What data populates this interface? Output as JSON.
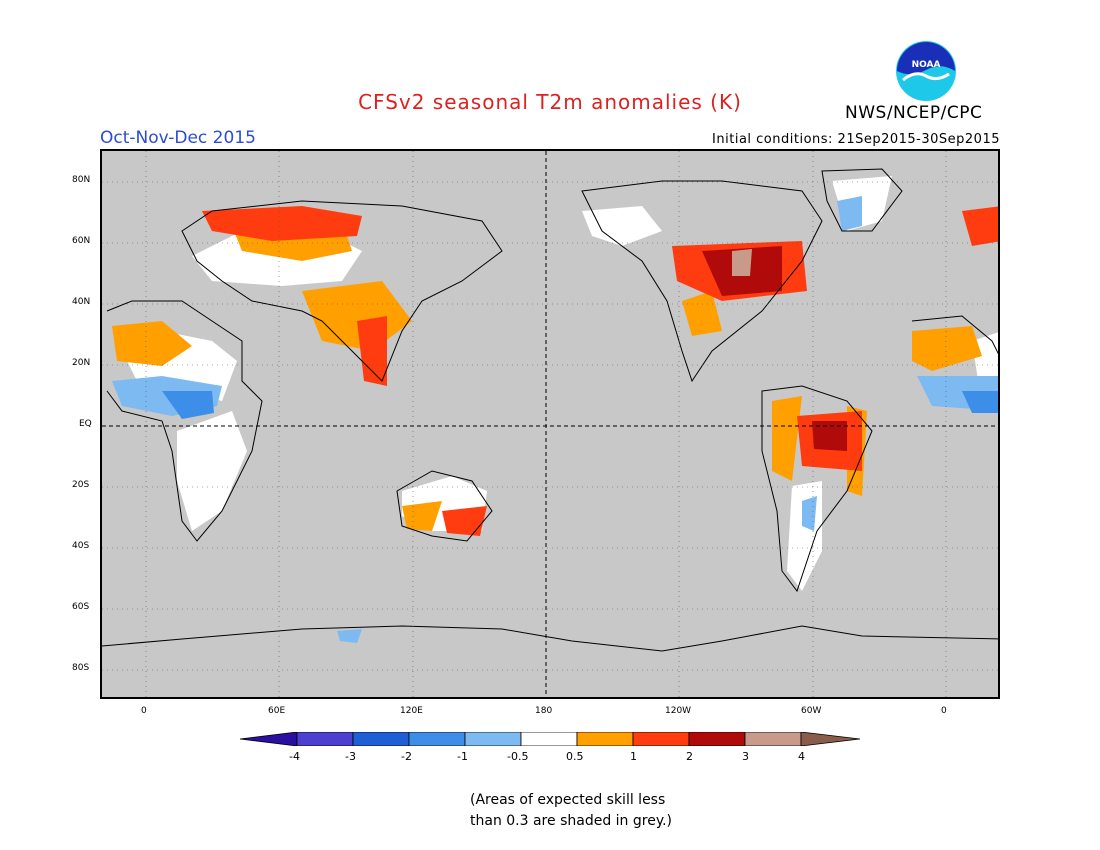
{
  "title": "CFSv2 seasonal T2m anomalies (K)",
  "season": "Oct-Nov-Dec 2015",
  "agency": "NWS/NCEP/CPC",
  "initial_conditions": "Initial conditions: 21Sep2015-30Sep2015",
  "logo_text": "NOAA",
  "y_axis_labels": [
    "80N",
    "60N",
    "40N",
    "20N",
    "EQ",
    "20S",
    "40S",
    "60S",
    "80S"
  ],
  "x_axis_labels": [
    "0",
    "60E",
    "120E",
    "180",
    "120W",
    "60W",
    "0"
  ],
  "colorbar": {
    "labels": [
      "-4",
      "-3",
      "-2",
      "-1",
      "-0.5",
      "0.5",
      "1",
      "2",
      "3",
      "4"
    ],
    "colors": [
      "#2a0fa0",
      "#4d3fd0",
      "#1f5fd6",
      "#3c8ee8",
      "#7dbaf2",
      "#ffffff",
      "#ff9f00",
      "#ff3c10",
      "#b00a0a",
      "#c89a8a",
      "#8a5c4a"
    ]
  },
  "note_line1": "(Areas of expected skill less",
  "note_line2": "than 0.3 are shaded in grey.)",
  "colors": {
    "land_grey": "#c8c8c8",
    "neutral": "#ffffff",
    "warm_0_5": "#ff9f00",
    "warm_1": "#ff3c10",
    "warm_2": "#b00a0a",
    "warm_3": "#c89a8a",
    "cool_0_5": "#7dbaf2",
    "cool_1": "#3c8ee8"
  }
}
